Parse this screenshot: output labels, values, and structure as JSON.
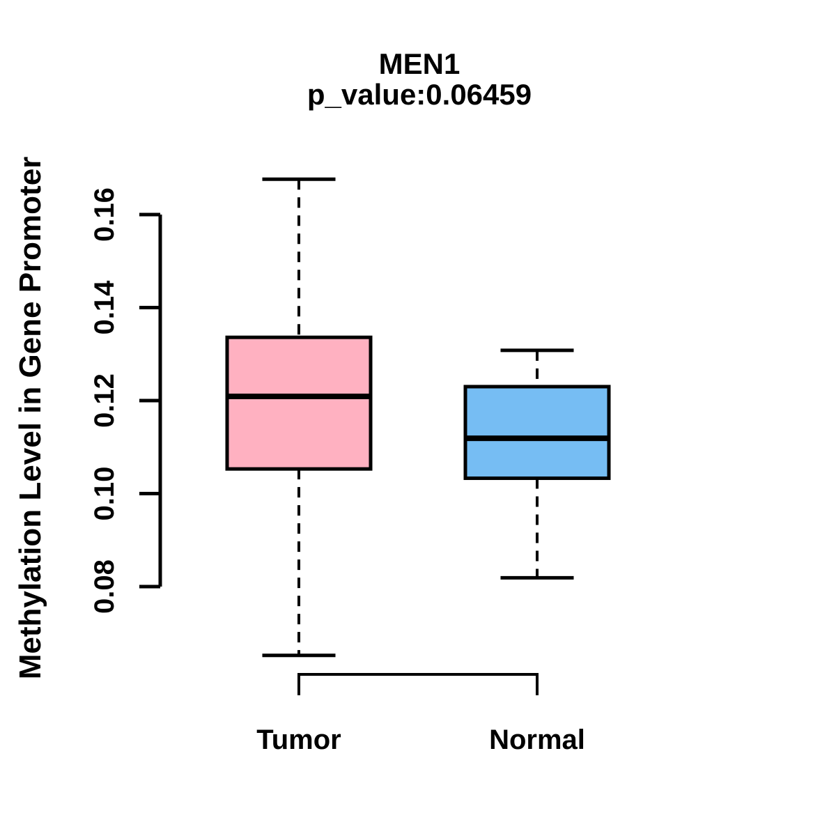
{
  "chart_data": {
    "type": "boxplot",
    "title": "MEN1",
    "subtitle": "p_value:0.06459",
    "gene": "MEN1",
    "p_value": "0.06459",
    "ylabel": "Methylation Level in Gene Promoter",
    "xlabel": "",
    "categories": [
      "Tumor",
      "Normal"
    ],
    "yticks": [
      0.08,
      0.1,
      0.12,
      0.14,
      0.16
    ],
    "ytick_labels": [
      "0.08",
      "0.10",
      "0.12",
      "0.14",
      "0.16"
    ],
    "ylim_axis": [
      0.08,
      0.16
    ],
    "grid": false,
    "legend": "none",
    "orientation": "vertical",
    "series": [
      {
        "name": "Tumor",
        "fill_color": "#FFB1C1",
        "whisker_low": 0.0652,
        "q1": 0.1053,
        "median": 0.1209,
        "q3": 0.1336,
        "whisker_high": 0.1676
      },
      {
        "name": "Normal",
        "fill_color": "#76BDF3",
        "whisker_low": 0.0819,
        "q1": 0.1033,
        "median": 0.1119,
        "q3": 0.123,
        "whisker_high": 0.1308
      }
    ],
    "comparison_bracket": {
      "between": [
        "Tumor",
        "Normal"
      ]
    },
    "stroke_color": "#000000",
    "background_color": "#FFFFFF"
  }
}
